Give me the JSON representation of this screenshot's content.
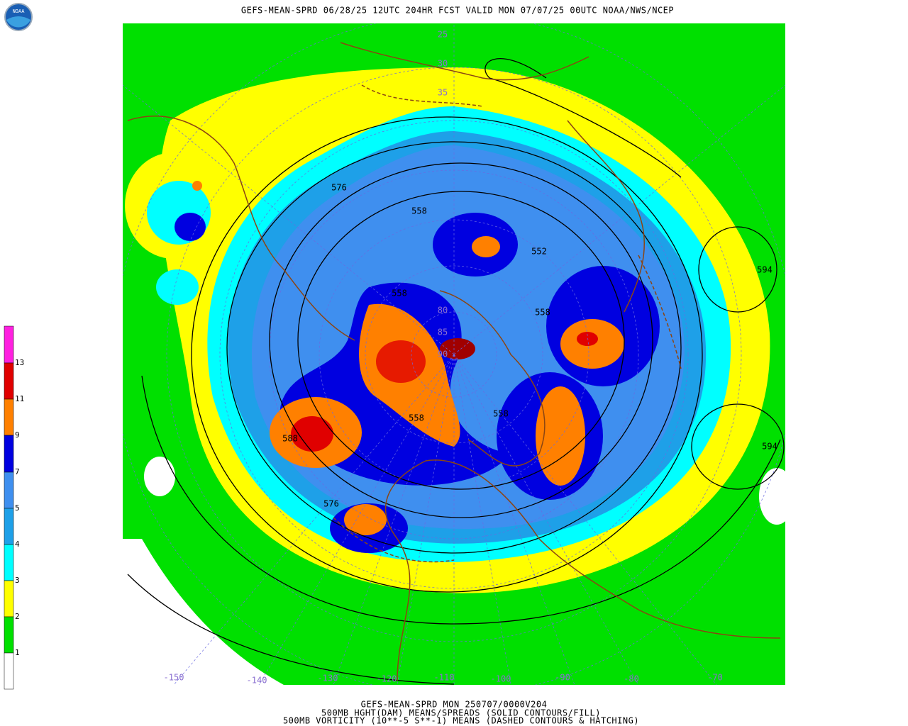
{
  "header": {
    "title": "GEFS-MEAN-SPRD 06/28/25 12UTC 204HR FCST VALID MON 07/07/25 00UTC NOAA/NWS/NCEP",
    "logo": "NOAA"
  },
  "colorbar": {
    "labels": [
      13,
      11,
      9,
      7,
      5,
      4,
      3,
      2,
      1
    ]
  },
  "map": {
    "latitude_labels": [
      25,
      30,
      35,
      80,
      85,
      90
    ],
    "longitude_labels": [
      -150,
      -140,
      -130,
      -120,
      -110,
      -100,
      -90,
      -80,
      -70
    ],
    "contour_labels": [
      576,
      558,
      552,
      594,
      558,
      558,
      558,
      594,
      588,
      558,
      576
    ]
  },
  "footer": {
    "lines": [
      "GEFS-MEAN-SPRD MON 250707/0000V204",
      "500MB HGHT(DAM) MEANS/SPREADS (SOLID CONTOURS/FILL)",
      "500MB VORTICITY (10**-5 S**-1) MEANS (DASHED CONTOURS & HATCHING)"
    ]
  }
}
